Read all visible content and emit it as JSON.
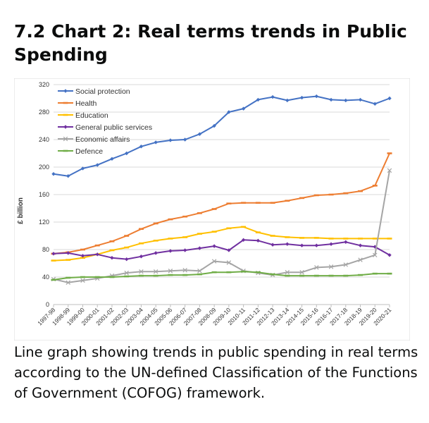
{
  "page": {
    "title": "7.2 Chart 2: Real terms trends in Public Spending",
    "caption": "Line graph showing trends in public spending in real terms according to the UN-defined Classification of the Functions of Government (COFOG) framework."
  },
  "chart_data": {
    "type": "line",
    "title": "",
    "xlabel": "",
    "ylabel": "£ billion",
    "ylim": [
      0,
      320
    ],
    "yticks": [
      0,
      40,
      80,
      120,
      160,
      200,
      240,
      280,
      320
    ],
    "grid": true,
    "legend_position": "top-left",
    "categories": [
      "1997-98",
      "1998-99",
      "1999-00",
      "2000-01",
      "2001-02",
      "2002-03",
      "2003-04",
      "2004-05",
      "2005-06",
      "2006-07",
      "2007-08",
      "2008-09",
      "2009-10",
      "2010-11",
      "2011-12",
      "2012-13",
      "2013-14",
      "2014-15",
      "2015-16",
      "2016-17",
      "2017-18",
      "2018-19",
      "2019-20",
      "2020-21"
    ],
    "series": [
      {
        "name": "Social protection",
        "color": "#4472c4",
        "marker": "diamond",
        "values": [
          190,
          187,
          198,
          203,
          212,
          220,
          230,
          236,
          239,
          240,
          248,
          260,
          280,
          285,
          298,
          302,
          297,
          301,
          303,
          298,
          297,
          298,
          292,
          300
        ]
      },
      {
        "name": "Health",
        "color": "#ed7d31",
        "marker": "dash",
        "values": [
          74,
          76,
          80,
          86,
          92,
          100,
          110,
          118,
          124,
          128,
          133,
          139,
          147,
          148,
          148,
          148,
          151,
          155,
          159,
          160,
          162,
          165,
          173,
          220
        ]
      },
      {
        "name": "Education",
        "color": "#ffc000",
        "marker": "dash",
        "values": [
          64,
          65,
          68,
          73,
          79,
          83,
          89,
          93,
          96,
          98,
          103,
          106,
          111,
          113,
          105,
          100,
          98,
          97,
          97,
          96,
          96,
          96,
          96,
          96
        ]
      },
      {
        "name": "General public services",
        "color": "#7030a0",
        "marker": "diamond",
        "values": [
          74,
          75,
          71,
          73,
          68,
          66,
          70,
          75,
          78,
          79,
          82,
          85,
          79,
          94,
          93,
          87,
          88,
          86,
          86,
          88,
          91,
          86,
          84,
          72
        ]
      },
      {
        "name": "Economic affairs",
        "color": "#a5a5a5",
        "marker": "cross",
        "values": [
          37,
          32,
          35,
          38,
          42,
          46,
          48,
          48,
          49,
          50,
          49,
          63,
          61,
          49,
          46,
          43,
          47,
          47,
          54,
          55,
          58,
          65,
          72,
          195
        ]
      },
      {
        "name": "Defence",
        "color": "#70ad47",
        "marker": "dash",
        "values": [
          36,
          39,
          40,
          40,
          40,
          41,
          42,
          42,
          43,
          43,
          44,
          47,
          47,
          48,
          47,
          44,
          42,
          42,
          42,
          42,
          42,
          43,
          45,
          45
        ]
      }
    ]
  }
}
